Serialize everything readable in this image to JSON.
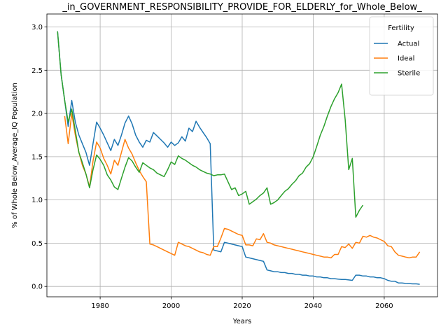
{
  "chart_data": {
    "type": "line",
    "title": "_in_GOVERNMENT_RESPONSIBILITY_PROVIDE_FOR_ELDERLY_for_Whole_Below_",
    "xlabel": "Years",
    "ylabel": "% of Whole Below_Average_IQ Population",
    "xlim": [
      1965,
      2075
    ],
    "ylim": [
      -0.12,
      3.15
    ],
    "x_ticks": [
      1980,
      2000,
      2020,
      2040,
      2060
    ],
    "x_tick_labels": [
      "1980",
      "2000",
      "2020",
      "2040",
      "2060"
    ],
    "y_ticks": [
      0.0,
      0.5,
      1.0,
      1.5,
      2.0,
      2.5,
      3.0
    ],
    "y_tick_labels": [
      "0.0",
      "0.5",
      "1.0",
      "1.5",
      "2.0",
      "2.5",
      "3.0"
    ],
    "grid": true,
    "legend": {
      "title": "Fertility",
      "position": "top-right"
    },
    "series": [
      {
        "name": "Actual",
        "color": "#1f77b4",
        "points": [
          [
            1968,
            2.95
          ],
          [
            1969,
            2.45
          ],
          [
            1970,
            2.15
          ],
          [
            1971,
            1.85
          ],
          [
            1972,
            2.15
          ],
          [
            1973,
            1.9
          ],
          [
            1974,
            1.75
          ],
          [
            1975,
            1.65
          ],
          [
            1976,
            1.55
          ],
          [
            1977,
            1.4
          ],
          [
            1978,
            1.65
          ],
          [
            1979,
            1.9
          ],
          [
            1980,
            1.83
          ],
          [
            1981,
            1.75
          ],
          [
            1982,
            1.66
          ],
          [
            1983,
            1.57
          ],
          [
            1984,
            1.7
          ],
          [
            1985,
            1.63
          ],
          [
            1986,
            1.75
          ],
          [
            1987,
            1.89
          ],
          [
            1988,
            1.97
          ],
          [
            1989,
            1.88
          ],
          [
            1990,
            1.75
          ],
          [
            1991,
            1.67
          ],
          [
            1992,
            1.61
          ],
          [
            1993,
            1.69
          ],
          [
            1994,
            1.67
          ],
          [
            1995,
            1.78
          ],
          [
            1996,
            1.74
          ],
          [
            1997,
            1.7
          ],
          [
            1998,
            1.66
          ],
          [
            1999,
            1.61
          ],
          [
            2000,
            1.67
          ],
          [
            2001,
            1.63
          ],
          [
            2002,
            1.66
          ],
          [
            2003,
            1.73
          ],
          [
            2004,
            1.68
          ],
          [
            2005,
            1.83
          ],
          [
            2006,
            1.79
          ],
          [
            2007,
            1.91
          ],
          [
            2008,
            1.84
          ],
          [
            2009,
            1.78
          ],
          [
            2010,
            1.72
          ],
          [
            2011,
            1.65
          ],
          [
            2012,
            0.42
          ],
          [
            2013,
            0.41
          ],
          [
            2014,
            0.4
          ],
          [
            2015,
            0.51
          ],
          [
            2016,
            0.5
          ],
          [
            2017,
            0.49
          ],
          [
            2018,
            0.48
          ],
          [
            2019,
            0.47
          ],
          [
            2020,
            0.46
          ],
          [
            2021,
            0.34
          ],
          [
            2022,
            0.33
          ],
          [
            2023,
            0.32
          ],
          [
            2024,
            0.31
          ],
          [
            2025,
            0.3
          ],
          [
            2026,
            0.29
          ],
          [
            2027,
            0.19
          ],
          [
            2028,
            0.18
          ],
          [
            2029,
            0.17
          ],
          [
            2030,
            0.17
          ],
          [
            2031,
            0.16
          ],
          [
            2032,
            0.16
          ],
          [
            2033,
            0.15
          ],
          [
            2034,
            0.15
          ],
          [
            2035,
            0.14
          ],
          [
            2036,
            0.14
          ],
          [
            2037,
            0.13
          ],
          [
            2038,
            0.13
          ],
          [
            2039,
            0.12
          ],
          [
            2040,
            0.12
          ],
          [
            2041,
            0.11
          ],
          [
            2042,
            0.11
          ],
          [
            2043,
            0.1
          ],
          [
            2044,
            0.1
          ],
          [
            2045,
            0.09
          ],
          [
            2046,
            0.09
          ],
          [
            2047,
            0.085
          ],
          [
            2048,
            0.08
          ],
          [
            2049,
            0.08
          ],
          [
            2050,
            0.075
          ],
          [
            2051,
            0.07
          ],
          [
            2052,
            0.13
          ],
          [
            2053,
            0.13
          ],
          [
            2054,
            0.12
          ],
          [
            2055,
            0.12
          ],
          [
            2056,
            0.11
          ],
          [
            2057,
            0.11
          ],
          [
            2058,
            0.1
          ],
          [
            2059,
            0.1
          ],
          [
            2060,
            0.09
          ],
          [
            2061,
            0.07
          ],
          [
            2062,
            0.06
          ],
          [
            2063,
            0.06
          ],
          [
            2064,
            0.04
          ],
          [
            2065,
            0.04
          ],
          [
            2066,
            0.035
          ],
          [
            2067,
            0.033
          ],
          [
            2068,
            0.03
          ],
          [
            2069,
            0.03
          ],
          [
            2070,
            0.025
          ]
        ]
      },
      {
        "name": "Ideal",
        "color": "#ff7f0e",
        "points": [
          [
            1970,
            1.97
          ],
          [
            1971,
            1.65
          ],
          [
            1972,
            2.0
          ],
          [
            1973,
            1.75
          ],
          [
            1974,
            1.55
          ],
          [
            1975,
            1.4
          ],
          [
            1976,
            1.3
          ],
          [
            1977,
            1.15
          ],
          [
            1978,
            1.45
          ],
          [
            1979,
            1.67
          ],
          [
            1980,
            1.6
          ],
          [
            1981,
            1.48
          ],
          [
            1982,
            1.4
          ],
          [
            1983,
            1.3
          ],
          [
            1984,
            1.46
          ],
          [
            1985,
            1.4
          ],
          [
            1986,
            1.55
          ],
          [
            1987,
            1.7
          ],
          [
            1988,
            1.6
          ],
          [
            1989,
            1.53
          ],
          [
            1990,
            1.43
          ],
          [
            1991,
            1.34
          ],
          [
            1992,
            1.27
          ],
          [
            1993,
            1.21
          ],
          [
            1994,
            0.49
          ],
          [
            1995,
            0.48
          ],
          [
            1996,
            0.46
          ],
          [
            1997,
            0.44
          ],
          [
            1998,
            0.42
          ],
          [
            1999,
            0.4
          ],
          [
            2000,
            0.38
          ],
          [
            2001,
            0.36
          ],
          [
            2002,
            0.51
          ],
          [
            2003,
            0.49
          ],
          [
            2004,
            0.47
          ],
          [
            2005,
            0.46
          ],
          [
            2006,
            0.44
          ],
          [
            2007,
            0.42
          ],
          [
            2008,
            0.4
          ],
          [
            2009,
            0.39
          ],
          [
            2010,
            0.37
          ],
          [
            2011,
            0.36
          ],
          [
            2012,
            0.46
          ],
          [
            2013,
            0.46
          ],
          [
            2014,
            0.56
          ],
          [
            2015,
            0.67
          ],
          [
            2016,
            0.66
          ],
          [
            2017,
            0.64
          ],
          [
            2018,
            0.62
          ],
          [
            2019,
            0.6
          ],
          [
            2020,
            0.59
          ],
          [
            2021,
            0.48
          ],
          [
            2022,
            0.48
          ],
          [
            2023,
            0.47
          ],
          [
            2024,
            0.55
          ],
          [
            2025,
            0.54
          ],
          [
            2026,
            0.61
          ],
          [
            2027,
            0.51
          ],
          [
            2028,
            0.5
          ],
          [
            2029,
            0.48
          ],
          [
            2030,
            0.47
          ],
          [
            2031,
            0.46
          ],
          [
            2032,
            0.45
          ],
          [
            2033,
            0.44
          ],
          [
            2034,
            0.43
          ],
          [
            2035,
            0.42
          ],
          [
            2036,
            0.41
          ],
          [
            2037,
            0.4
          ],
          [
            2038,
            0.39
          ],
          [
            2039,
            0.38
          ],
          [
            2040,
            0.37
          ],
          [
            2041,
            0.36
          ],
          [
            2042,
            0.35
          ],
          [
            2043,
            0.34
          ],
          [
            2044,
            0.34
          ],
          [
            2045,
            0.33
          ],
          [
            2046,
            0.37
          ],
          [
            2047,
            0.37
          ],
          [
            2048,
            0.46
          ],
          [
            2049,
            0.45
          ],
          [
            2050,
            0.49
          ],
          [
            2051,
            0.44
          ],
          [
            2052,
            0.51
          ],
          [
            2053,
            0.5
          ],
          [
            2054,
            0.58
          ],
          [
            2055,
            0.57
          ],
          [
            2056,
            0.59
          ],
          [
            2057,
            0.57
          ],
          [
            2058,
            0.56
          ],
          [
            2059,
            0.54
          ],
          [
            2060,
            0.52
          ],
          [
            2061,
            0.47
          ],
          [
            2062,
            0.46
          ],
          [
            2063,
            0.4
          ],
          [
            2064,
            0.36
          ],
          [
            2065,
            0.35
          ],
          [
            2066,
            0.34
          ],
          [
            2067,
            0.33
          ],
          [
            2068,
            0.34
          ],
          [
            2069,
            0.34
          ],
          [
            2070,
            0.4
          ]
        ]
      },
      {
        "name": "Sterile",
        "color": "#2ca02c",
        "points": [
          [
            1968,
            2.95
          ],
          [
            1969,
            2.45
          ],
          [
            1970,
            2.15
          ],
          [
            1971,
            1.9
          ],
          [
            1972,
            2.05
          ],
          [
            1973,
            1.8
          ],
          [
            1974,
            1.55
          ],
          [
            1975,
            1.43
          ],
          [
            1976,
            1.3
          ],
          [
            1977,
            1.14
          ],
          [
            1978,
            1.35
          ],
          [
            1979,
            1.52
          ],
          [
            1980,
            1.47
          ],
          [
            1981,
            1.4
          ],
          [
            1982,
            1.29
          ],
          [
            1983,
            1.23
          ],
          [
            1984,
            1.15
          ],
          [
            1985,
            1.12
          ],
          [
            1986,
            1.25
          ],
          [
            1987,
            1.38
          ],
          [
            1988,
            1.49
          ],
          [
            1989,
            1.45
          ],
          [
            1990,
            1.38
          ],
          [
            1991,
            1.32
          ],
          [
            1992,
            1.43
          ],
          [
            1993,
            1.4
          ],
          [
            1994,
            1.37
          ],
          [
            1995,
            1.35
          ],
          [
            1996,
            1.31
          ],
          [
            1997,
            1.29
          ],
          [
            1998,
            1.27
          ],
          [
            1999,
            1.35
          ],
          [
            2000,
            1.44
          ],
          [
            2001,
            1.41
          ],
          [
            2002,
            1.51
          ],
          [
            2003,
            1.48
          ],
          [
            2004,
            1.46
          ],
          [
            2005,
            1.43
          ],
          [
            2006,
            1.4
          ],
          [
            2007,
            1.38
          ],
          [
            2008,
            1.35
          ],
          [
            2009,
            1.33
          ],
          [
            2010,
            1.31
          ],
          [
            2011,
            1.3
          ],
          [
            2012,
            1.28
          ],
          [
            2013,
            1.29
          ],
          [
            2014,
            1.29
          ],
          [
            2015,
            1.3
          ],
          [
            2016,
            1.21
          ],
          [
            2017,
            1.12
          ],
          [
            2018,
            1.14
          ],
          [
            2019,
            1.05
          ],
          [
            2020,
            1.07
          ],
          [
            2021,
            1.1
          ],
          [
            2022,
            0.95
          ],
          [
            2023,
            0.98
          ],
          [
            2024,
            1.01
          ],
          [
            2025,
            1.05
          ],
          [
            2026,
            1.08
          ],
          [
            2027,
            1.14
          ],
          [
            2028,
            0.95
          ],
          [
            2029,
            0.97
          ],
          [
            2030,
            1.0
          ],
          [
            2031,
            1.05
          ],
          [
            2032,
            1.1
          ],
          [
            2033,
            1.13
          ],
          [
            2034,
            1.18
          ],
          [
            2035,
            1.22
          ],
          [
            2036,
            1.28
          ],
          [
            2037,
            1.31
          ],
          [
            2038,
            1.38
          ],
          [
            2039,
            1.42
          ],
          [
            2040,
            1.5
          ],
          [
            2041,
            1.62
          ],
          [
            2042,
            1.75
          ],
          [
            2043,
            1.85
          ],
          [
            2044,
            1.97
          ],
          [
            2045,
            2.08
          ],
          [
            2046,
            2.17
          ],
          [
            2047,
            2.24
          ],
          [
            2048,
            2.34
          ],
          [
            2049,
            1.93
          ],
          [
            2050,
            1.35
          ],
          [
            2051,
            1.48
          ],
          [
            2052,
            0.8
          ],
          [
            2053,
            0.88
          ],
          [
            2054,
            0.94
          ]
        ]
      }
    ]
  }
}
